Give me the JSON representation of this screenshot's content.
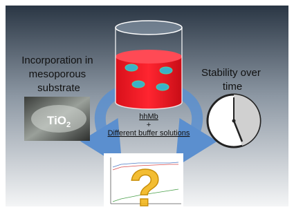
{
  "left_label": [
    "Incorporation in",
    "mesoporous",
    "substrate"
  ],
  "right_label": [
    "Stability over",
    "time"
  ],
  "center": {
    "protein": "hhMb",
    "plus": "+",
    "buffer": "Different buffer solutions"
  },
  "photo_label": {
    "main": "TiO",
    "sub": "2"
  },
  "question": "?"
}
